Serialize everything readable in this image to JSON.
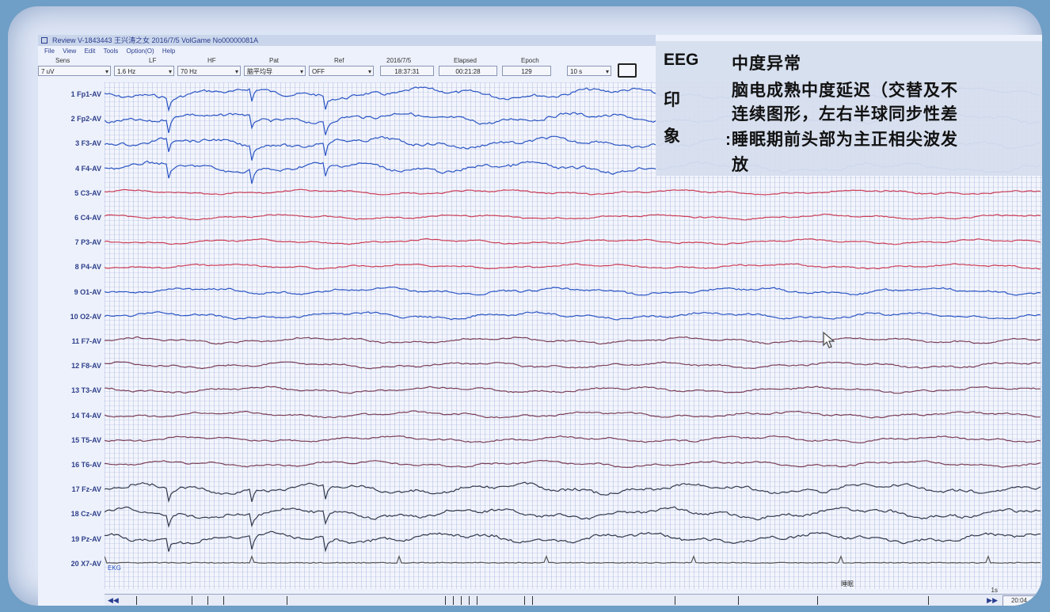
{
  "window": {
    "title": "Review  V-1843443 王兴涛之女  2016/7/5  VolGame No00000081A",
    "menu": [
      "File",
      "View",
      "Edit",
      "Tools",
      "Option(O)",
      "Help"
    ]
  },
  "toolbar": {
    "labels": {
      "sens": "Sens",
      "lf": "LF",
      "hf": "HF",
      "pat": "Pat",
      "ref": "Ref",
      "date": "2016/7/5",
      "elapsed": "Elapsed",
      "epoch": "Epoch"
    },
    "sens_value": "7 uV",
    "lf_value": "1.6 Hz",
    "hf_value": "70 Hz",
    "pat_value": "脑平均导",
    "ref_value": "OFF",
    "time_value": "18:37:31",
    "elapsed_value": "00:21:28",
    "epoch_value": "129",
    "page_value": "10 s"
  },
  "channels": [
    {
      "num": "1",
      "name": "Fp1-AV",
      "color": "#2b55c4"
    },
    {
      "num": "2",
      "name": "Fp2-AV",
      "color": "#2b55c4"
    },
    {
      "num": "3",
      "name": "F3-AV",
      "color": "#2b55c4"
    },
    {
      "num": "4",
      "name": "F4-AV",
      "color": "#2b55c4"
    },
    {
      "num": "5",
      "name": "C3-AV",
      "color": "#cc3d57"
    },
    {
      "num": "6",
      "name": "C4-AV",
      "color": "#cc3d57"
    },
    {
      "num": "7",
      "name": "P3-AV",
      "color": "#cc3d57"
    },
    {
      "num": "8",
      "name": "P4-AV",
      "color": "#cc3d57"
    },
    {
      "num": "9",
      "name": "O1-AV",
      "color": "#2b55c4"
    },
    {
      "num": "10",
      "name": "O2-AV",
      "color": "#2b55c4"
    },
    {
      "num": "11",
      "name": "F7-AV",
      "color": "#7a3e58"
    },
    {
      "num": "12",
      "name": "F8-AV",
      "color": "#7a3e58"
    },
    {
      "num": "13",
      "name": "T3-AV",
      "color": "#7a3e58"
    },
    {
      "num": "14",
      "name": "T4-AV",
      "color": "#7a3e58"
    },
    {
      "num": "15",
      "name": "T5-AV",
      "color": "#7a3e58"
    },
    {
      "num": "16",
      "name": "T6-AV",
      "color": "#7a3e58"
    },
    {
      "num": "17",
      "name": "Fz-AV",
      "color": "#333a4d"
    },
    {
      "num": "18",
      "name": "Cz-AV",
      "color": "#333a4d"
    },
    {
      "num": "19",
      "name": "Pz-AV",
      "color": "#333a4d"
    },
    {
      "num": "20",
      "name": "X7-AV",
      "color": "#555555"
    }
  ],
  "event_labels": {
    "ekg": "EKG",
    "mark": "睡眠"
  },
  "bottom": {
    "scale": "1s",
    "time_display": "20:04"
  },
  "report": {
    "label_eeg": "EEG",
    "label_yin": "印",
    "label_xiang": "象",
    "conclusion": "中度异常",
    "line1": "脑电成熟中度延迟（交替及不",
    "line2": "连续图形，左右半球同步性差",
    "line3": "睡眠期前头部为主正相尖波发",
    "line4": "放"
  }
}
